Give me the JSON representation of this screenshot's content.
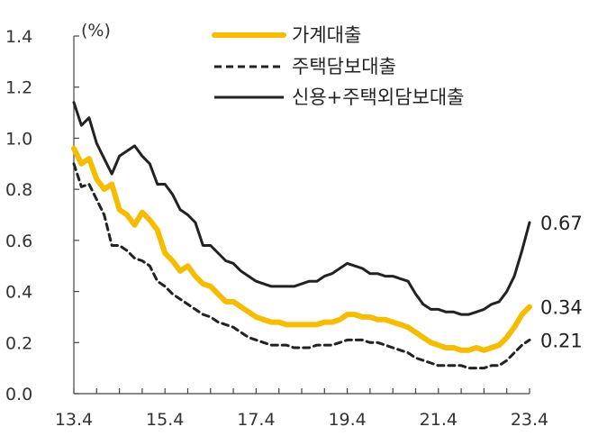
{
  "chart_data": {
    "type": "line",
    "ylabel": "(%)",
    "ylim": [
      0,
      1.4
    ],
    "yticks": [
      "0.0",
      "0.2",
      "0.4",
      "0.6",
      "0.8",
      "1.0",
      "1.2",
      "1.4"
    ],
    "xlim": [
      "13.4",
      "23.4"
    ],
    "xticks": [
      "13.4",
      "15.4",
      "17.4",
      "19.4",
      "21.4",
      "23.4"
    ],
    "grid": false,
    "legend_position": "top-right",
    "colors": {
      "household": "#F5BC00",
      "mortgage": "#222222",
      "credit": "#222222"
    },
    "series": [
      {
        "name": "가계대출",
        "style": "solid-thick",
        "end_label": "0.34",
        "points": [
          [
            "13.4",
            0.96
          ],
          [
            "13.6",
            0.9
          ],
          [
            "13.8",
            0.92
          ],
          [
            "13.10",
            0.84
          ],
          [
            "13.12",
            0.8
          ],
          [
            "14.2",
            0.82
          ],
          [
            "14.4",
            0.72
          ],
          [
            "14.6",
            0.7
          ],
          [
            "14.8",
            0.66
          ],
          [
            "14.10",
            0.71
          ],
          [
            "14.12",
            0.68
          ],
          [
            "15.2",
            0.64
          ],
          [
            "15.4",
            0.55
          ],
          [
            "15.6",
            0.52
          ],
          [
            "15.8",
            0.48
          ],
          [
            "15.10",
            0.5
          ],
          [
            "15.12",
            0.46
          ],
          [
            "16.2",
            0.43
          ],
          [
            "16.4",
            0.42
          ],
          [
            "16.6",
            0.39
          ],
          [
            "16.8",
            0.36
          ],
          [
            "16.10",
            0.36
          ],
          [
            "16.12",
            0.34
          ],
          [
            "17.2",
            0.32
          ],
          [
            "17.4",
            0.3
          ],
          [
            "17.6",
            0.29
          ],
          [
            "17.8",
            0.28
          ],
          [
            "17.10",
            0.28
          ],
          [
            "17.12",
            0.27
          ],
          [
            "18.2",
            0.27
          ],
          [
            "18.4",
            0.27
          ],
          [
            "18.6",
            0.27
          ],
          [
            "18.8",
            0.27
          ],
          [
            "18.10",
            0.28
          ],
          [
            "18.12",
            0.28
          ],
          [
            "19.2",
            0.29
          ],
          [
            "19.4",
            0.31
          ],
          [
            "19.6",
            0.31
          ],
          [
            "19.8",
            0.3
          ],
          [
            "19.10",
            0.3
          ],
          [
            "19.12",
            0.29
          ],
          [
            "20.2",
            0.29
          ],
          [
            "20.4",
            0.28
          ],
          [
            "20.6",
            0.27
          ],
          [
            "20.8",
            0.26
          ],
          [
            "20.10",
            0.24
          ],
          [
            "20.12",
            0.22
          ],
          [
            "21.2",
            0.2
          ],
          [
            "21.4",
            0.19
          ],
          [
            "21.6",
            0.18
          ],
          [
            "21.8",
            0.18
          ],
          [
            "21.10",
            0.17
          ],
          [
            "21.12",
            0.17
          ],
          [
            "22.2",
            0.18
          ],
          [
            "22.4",
            0.17
          ],
          [
            "22.6",
            0.18
          ],
          [
            "22.8",
            0.19
          ],
          [
            "22.10",
            0.22
          ],
          [
            "22.12",
            0.26
          ],
          [
            "23.2",
            0.31
          ],
          [
            "23.4",
            0.34
          ]
        ]
      },
      {
        "name": "주택담보대출",
        "style": "dashed",
        "end_label": "0.21",
        "points": [
          [
            "13.4",
            0.9
          ],
          [
            "13.6",
            0.81
          ],
          [
            "13.8",
            0.82
          ],
          [
            "13.10",
            0.76
          ],
          [
            "13.12",
            0.7
          ],
          [
            "14.2",
            0.58
          ],
          [
            "14.4",
            0.58
          ],
          [
            "14.6",
            0.56
          ],
          [
            "14.8",
            0.53
          ],
          [
            "14.10",
            0.52
          ],
          [
            "14.12",
            0.5
          ],
          [
            "15.2",
            0.44
          ],
          [
            "15.4",
            0.42
          ],
          [
            "15.6",
            0.39
          ],
          [
            "15.8",
            0.37
          ],
          [
            "15.10",
            0.35
          ],
          [
            "15.12",
            0.33
          ],
          [
            "16.2",
            0.31
          ],
          [
            "16.4",
            0.3
          ],
          [
            "16.6",
            0.28
          ],
          [
            "16.8",
            0.27
          ],
          [
            "16.10",
            0.26
          ],
          [
            "16.12",
            0.24
          ],
          [
            "17.2",
            0.22
          ],
          [
            "17.4",
            0.21
          ],
          [
            "17.6",
            0.2
          ],
          [
            "17.8",
            0.19
          ],
          [
            "17.10",
            0.19
          ],
          [
            "17.12",
            0.19
          ],
          [
            "18.2",
            0.18
          ],
          [
            "18.4",
            0.18
          ],
          [
            "18.6",
            0.18
          ],
          [
            "18.8",
            0.19
          ],
          [
            "18.10",
            0.19
          ],
          [
            "18.12",
            0.19
          ],
          [
            "19.2",
            0.2
          ],
          [
            "19.4",
            0.21
          ],
          [
            "19.6",
            0.21
          ],
          [
            "19.8",
            0.21
          ],
          [
            "19.10",
            0.2
          ],
          [
            "19.12",
            0.2
          ],
          [
            "20.2",
            0.19
          ],
          [
            "20.4",
            0.18
          ],
          [
            "20.6",
            0.17
          ],
          [
            "20.8",
            0.16
          ],
          [
            "20.10",
            0.14
          ],
          [
            "20.12",
            0.13
          ],
          [
            "21.2",
            0.12
          ],
          [
            "21.4",
            0.11
          ],
          [
            "21.6",
            0.11
          ],
          [
            "21.8",
            0.11
          ],
          [
            "21.10",
            0.11
          ],
          [
            "21.12",
            0.1
          ],
          [
            "22.2",
            0.1
          ],
          [
            "22.4",
            0.1
          ],
          [
            "22.6",
            0.11
          ],
          [
            "22.8",
            0.11
          ],
          [
            "22.10",
            0.13
          ],
          [
            "22.12",
            0.16
          ],
          [
            "23.2",
            0.19
          ],
          [
            "23.4",
            0.21
          ]
        ]
      },
      {
        "name": "신용+주택외담보대출",
        "style": "solid",
        "end_label": "0.67",
        "points": [
          [
            "13.4",
            1.14
          ],
          [
            "13.6",
            1.05
          ],
          [
            "13.8",
            1.08
          ],
          [
            "13.10",
            0.98
          ],
          [
            "13.12",
            0.92
          ],
          [
            "14.2",
            0.86
          ],
          [
            "14.4",
            0.93
          ],
          [
            "14.6",
            0.95
          ],
          [
            "14.8",
            0.97
          ],
          [
            "14.10",
            0.93
          ],
          [
            "14.12",
            0.9
          ],
          [
            "15.2",
            0.82
          ],
          [
            "15.4",
            0.82
          ],
          [
            "15.6",
            0.78
          ],
          [
            "15.8",
            0.72
          ],
          [
            "15.10",
            0.7
          ],
          [
            "15.12",
            0.67
          ],
          [
            "16.2",
            0.58
          ],
          [
            "16.4",
            0.58
          ],
          [
            "16.6",
            0.55
          ],
          [
            "16.8",
            0.52
          ],
          [
            "16.10",
            0.51
          ],
          [
            "16.12",
            0.48
          ],
          [
            "17.2",
            0.46
          ],
          [
            "17.4",
            0.44
          ],
          [
            "17.6",
            0.43
          ],
          [
            "17.8",
            0.42
          ],
          [
            "17.10",
            0.42
          ],
          [
            "17.12",
            0.42
          ],
          [
            "18.2",
            0.42
          ],
          [
            "18.4",
            0.43
          ],
          [
            "18.6",
            0.44
          ],
          [
            "18.8",
            0.44
          ],
          [
            "18.10",
            0.46
          ],
          [
            "18.12",
            0.47
          ],
          [
            "19.2",
            0.49
          ],
          [
            "19.4",
            0.51
          ],
          [
            "19.6",
            0.5
          ],
          [
            "19.8",
            0.49
          ],
          [
            "19.10",
            0.47
          ],
          [
            "19.12",
            0.47
          ],
          [
            "20.2",
            0.46
          ],
          [
            "20.4",
            0.46
          ],
          [
            "20.6",
            0.45
          ],
          [
            "20.8",
            0.44
          ],
          [
            "20.10",
            0.39
          ],
          [
            "20.12",
            0.35
          ],
          [
            "21.2",
            0.33
          ],
          [
            "21.4",
            0.33
          ],
          [
            "21.6",
            0.32
          ],
          [
            "21.8",
            0.32
          ],
          [
            "21.10",
            0.31
          ],
          [
            "21.12",
            0.31
          ],
          [
            "22.2",
            0.32
          ],
          [
            "22.4",
            0.33
          ],
          [
            "22.6",
            0.35
          ],
          [
            "22.8",
            0.36
          ],
          [
            "22.10",
            0.4
          ],
          [
            "22.12",
            0.46
          ],
          [
            "23.2",
            0.56
          ],
          [
            "23.4",
            0.67
          ]
        ]
      }
    ]
  }
}
